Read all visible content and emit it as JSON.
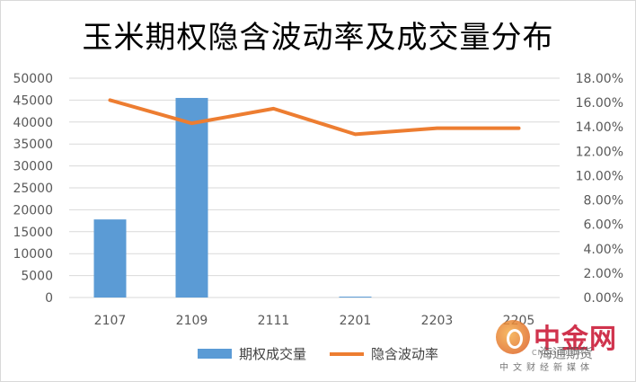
{
  "chart_data": {
    "type": "bar+line",
    "title": "玉米期权隐含波动率及成交量分布",
    "categories": [
      "2107",
      "2109",
      "2111",
      "2201",
      "2203",
      "2205"
    ],
    "series": [
      {
        "name": "期权成交量",
        "type": "bar",
        "axis": "left",
        "values": [
          17800,
          45500,
          0,
          200,
          0,
          0
        ],
        "color": "#5b9bd5"
      },
      {
        "name": "隐含波动率",
        "type": "line",
        "axis": "right",
        "values": [
          0.162,
          0.143,
          0.155,
          0.134,
          0.139,
          0.139
        ],
        "color": "#ed7d31"
      }
    ],
    "y_left": {
      "min": 0,
      "max": 50000,
      "step": 5000,
      "ticks": [
        "0",
        "5000",
        "10000",
        "15000",
        "20000",
        "25000",
        "30000",
        "35000",
        "40000",
        "45000",
        "50000"
      ]
    },
    "y_right": {
      "min": 0,
      "max": 0.18,
      "step": 0.02,
      "ticks": [
        "0.00%",
        "2.00%",
        "4.00%",
        "6.00%",
        "8.00%",
        "10.00%",
        "12.00%",
        "14.00%",
        "16.00%",
        "18.00%"
      ]
    },
    "grid": true,
    "legend_position": "bottom"
  },
  "watermark": {
    "brand": "中金网",
    "url": "CNGOLD.ORG",
    "overlay": "海通期货",
    "sub": "中文财经新媒体"
  }
}
